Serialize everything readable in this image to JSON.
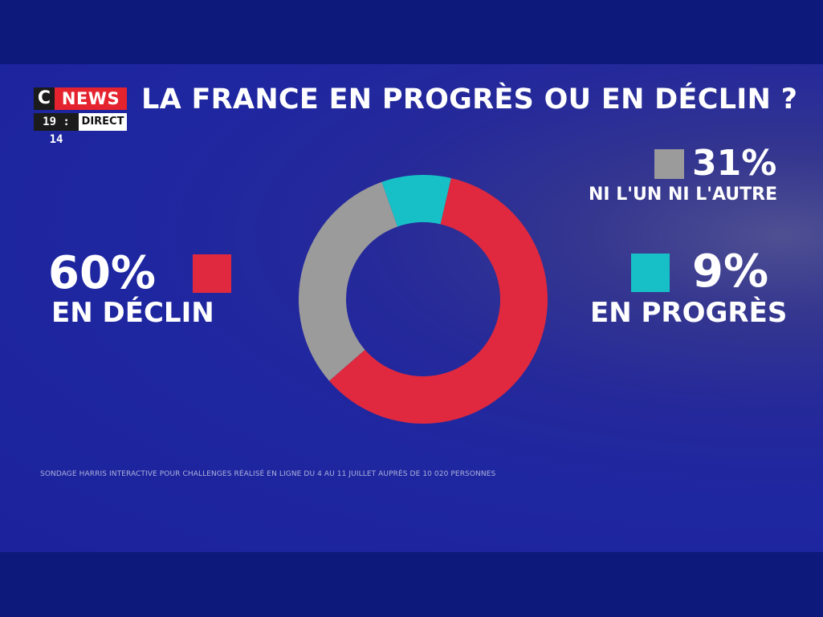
{
  "broadcast": {
    "logo_c": "C",
    "logo_news": "NEWS",
    "time": "19 : 14",
    "live_label": "DIRECT"
  },
  "title": "LA FRANCE EN PROGRÈS OU EN DÉCLIN ?",
  "source_note": "SONDAGE HARRIS INTERACTIVE POUR CHALLENGES RÉALISÉ EN LIGNE DU 4 AU 11 JUILLET AUPRÈS DE 10 020  PERSONNES",
  "colors": {
    "background": "#1e26a0",
    "decline": "#e0293f",
    "progress": "#17c0c6",
    "neither": "#9b9b9b"
  },
  "chart_data": {
    "type": "pie",
    "style": "donut",
    "title": "LA FRANCE EN PROGRÈS OU EN DÉCLIN ?",
    "slices": [
      {
        "label": "NI L'UN NI L'AUTRE",
        "value": 31,
        "display": "31%",
        "color": "#9b9b9b"
      },
      {
        "label": "EN PROGRÈS",
        "value": 9,
        "display": "9%",
        "color": "#17c0c6"
      },
      {
        "label": "EN DÉCLIN",
        "value": 60,
        "display": "60%",
        "color": "#e0293f"
      }
    ],
    "legend": "labels-beside-chart"
  }
}
